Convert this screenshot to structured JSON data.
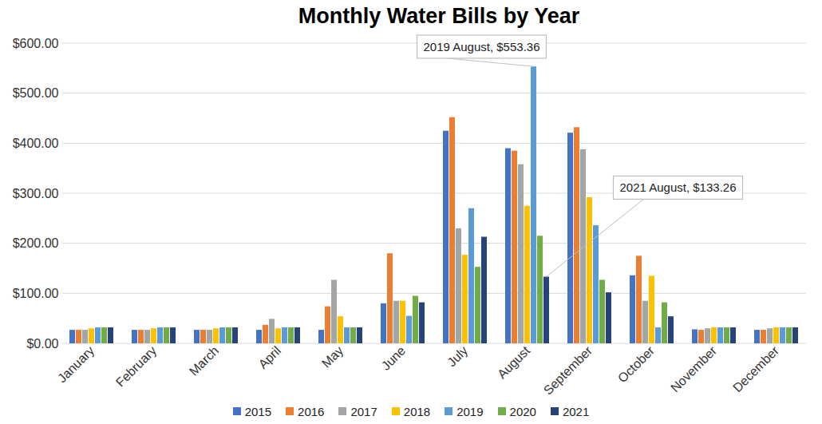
{
  "chart_data": {
    "type": "bar",
    "title": "Monthly Water Bills by Year",
    "categories": [
      "January",
      "February",
      "March",
      "April",
      "May",
      "June",
      "July",
      "August",
      "September",
      "October",
      "November",
      "December"
    ],
    "series": [
      {
        "name": "2015",
        "color": "#4472c4",
        "values": [
          27,
          27,
          27,
          27,
          27,
          80,
          425,
          390,
          421,
          136,
          28,
          27
        ]
      },
      {
        "name": "2016",
        "color": "#ed7d31",
        "values": [
          27,
          27,
          27,
          37,
          74,
          180,
          452,
          385,
          432,
          175,
          27,
          27
        ]
      },
      {
        "name": "2017",
        "color": "#a5a5a5",
        "values": [
          27,
          27,
          27,
          49,
          127,
          85,
          230,
          358,
          388,
          85,
          30,
          30
        ]
      },
      {
        "name": "2018",
        "color": "#ffc000",
        "values": [
          30,
          30,
          30,
          30,
          54,
          85,
          177,
          275,
          292,
          135,
          32,
          32
        ]
      },
      {
        "name": "2019",
        "color": "#5b9bd5",
        "values": [
          32,
          32,
          32,
          32,
          32,
          55,
          270,
          553.36,
          236,
          32,
          32,
          32
        ]
      },
      {
        "name": "2020",
        "color": "#70ad47",
        "values": [
          32,
          32,
          32,
          32,
          32,
          95,
          153,
          215,
          127,
          82,
          32,
          32
        ]
      },
      {
        "name": "2021",
        "color": "#264478",
        "values": [
          32,
          32,
          32,
          32,
          32,
          82,
          213,
          133.26,
          102,
          54,
          32,
          32
        ]
      }
    ],
    "ylim": [
      0,
      600
    ],
    "yticks": [
      {
        "value": 0,
        "label": "$0.00"
      },
      {
        "value": 100,
        "label": "$100.00"
      },
      {
        "value": 200,
        "label": "$200.00"
      },
      {
        "value": 300,
        "label": "$300.00"
      },
      {
        "value": 400,
        "label": "$400.00"
      },
      {
        "value": 500,
        "label": "$500.00"
      },
      {
        "value": 600,
        "label": "$600.00"
      }
    ],
    "grid": true,
    "legend": "bottom",
    "annotations": [
      {
        "text": "2019 August, $553.36",
        "category": "August",
        "series": "2019",
        "value": 553.36
      },
      {
        "text": "2021 August, $133.26",
        "category": "August",
        "series": "2021",
        "value": 133.26
      }
    ]
  }
}
